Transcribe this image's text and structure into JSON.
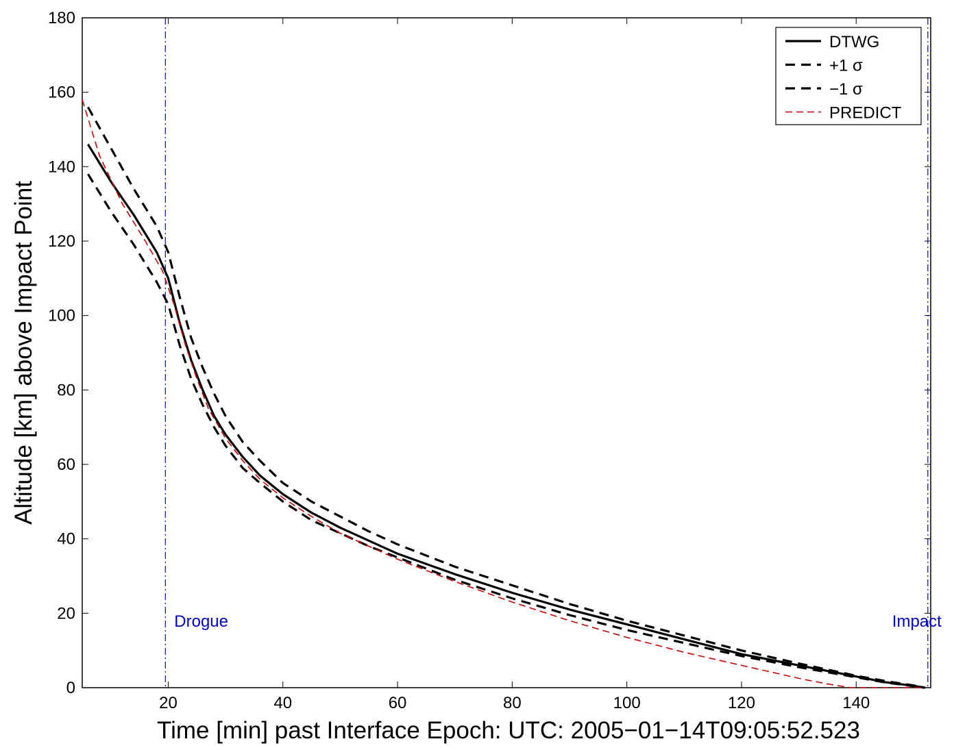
{
  "chart_data": {
    "type": "line",
    "title": "",
    "xlabel": "Time [min] past Interface Epoch: UTC: 2005−01−14T09:05:52.523",
    "ylabel": "Altitude [km] above Impact Point",
    "xlim": [
      5,
      153
    ],
    "ylim": [
      0,
      180
    ],
    "x_ticks": [
      20,
      40,
      60,
      80,
      100,
      120,
      140
    ],
    "y_ticks": [
      0,
      20,
      40,
      60,
      80,
      100,
      120,
      140,
      160,
      180
    ],
    "grid": false,
    "legend_position": "top-right",
    "series": [
      {
        "name": "DTWG",
        "style": "solid",
        "color": "#000000",
        "x": [
          6,
          10,
          14,
          18,
          20,
          22,
          24,
          26,
          28,
          30,
          33,
          36,
          40,
          45,
          50,
          55,
          60,
          70,
          80,
          90,
          100,
          110,
          120,
          130,
          140,
          145,
          150,
          152
        ],
        "y": [
          146,
          136,
          127,
          117,
          110,
          98,
          88,
          80,
          73,
          68,
          62,
          57,
          52,
          47,
          43,
          39.5,
          36,
          30.5,
          25.5,
          21,
          17,
          13,
          9,
          6,
          3,
          1.5,
          0.5,
          0
        ]
      },
      {
        "name": "+1 σ",
        "style": "dashed",
        "color": "#000000",
        "x": [
          6,
          10,
          14,
          18,
          20,
          22,
          24,
          26,
          28,
          30,
          33,
          36,
          40,
          45,
          50,
          55,
          60,
          70,
          80,
          90,
          100,
          110,
          120,
          130,
          140,
          145,
          150,
          152
        ],
        "y": [
          156,
          145,
          134,
          124,
          117,
          105,
          94,
          86,
          79,
          73,
          66,
          61,
          55,
          50,
          46,
          42,
          38.5,
          32.5,
          27.5,
          22.5,
          18,
          14,
          10,
          6.5,
          3.2,
          1.8,
          0.6,
          0
        ]
      },
      {
        "name": "−1 σ",
        "style": "dashed",
        "color": "#000000",
        "x": [
          6,
          10,
          14,
          18,
          20,
          22,
          24,
          26,
          28,
          30,
          33,
          36,
          40,
          45,
          50,
          55,
          60,
          70,
          80,
          90,
          100,
          110,
          120,
          130,
          140,
          145,
          150,
          152
        ],
        "y": [
          138,
          128,
          119,
          109,
          103,
          92,
          83,
          76,
          70,
          65,
          59,
          55,
          50,
          45,
          41.5,
          38,
          35,
          29,
          24,
          19.5,
          15.5,
          12,
          8.5,
          5.5,
          2.8,
          1.4,
          0.4,
          0
        ]
      },
      {
        "name": "PREDICT",
        "style": "dashed-fine",
        "color": "#cc0000",
        "x": [
          5,
          8,
          12,
          16,
          19,
          21,
          23,
          25,
          27,
          30,
          33,
          36,
          40,
          45,
          50,
          55,
          60,
          70,
          80,
          90,
          100,
          110,
          120,
          130,
          135,
          139,
          145,
          152
        ],
        "y": [
          158,
          143,
          130,
          120,
          112,
          103,
          92,
          83,
          75,
          67,
          61,
          56,
          51,
          46,
          41.5,
          38,
          34.5,
          28.5,
          23,
          18,
          13.5,
          9.5,
          6,
          2.5,
          1,
          0,
          0,
          0
        ]
      }
    ],
    "annotations": [
      {
        "label": "Drogue",
        "x": 19.5,
        "y": 18,
        "line_style": "dash-dot",
        "color": "#0000cc"
      },
      {
        "label": "Impact",
        "x": 152.5,
        "y": 18,
        "line_style": "dash-dot",
        "color": "#0000cc"
      }
    ]
  }
}
